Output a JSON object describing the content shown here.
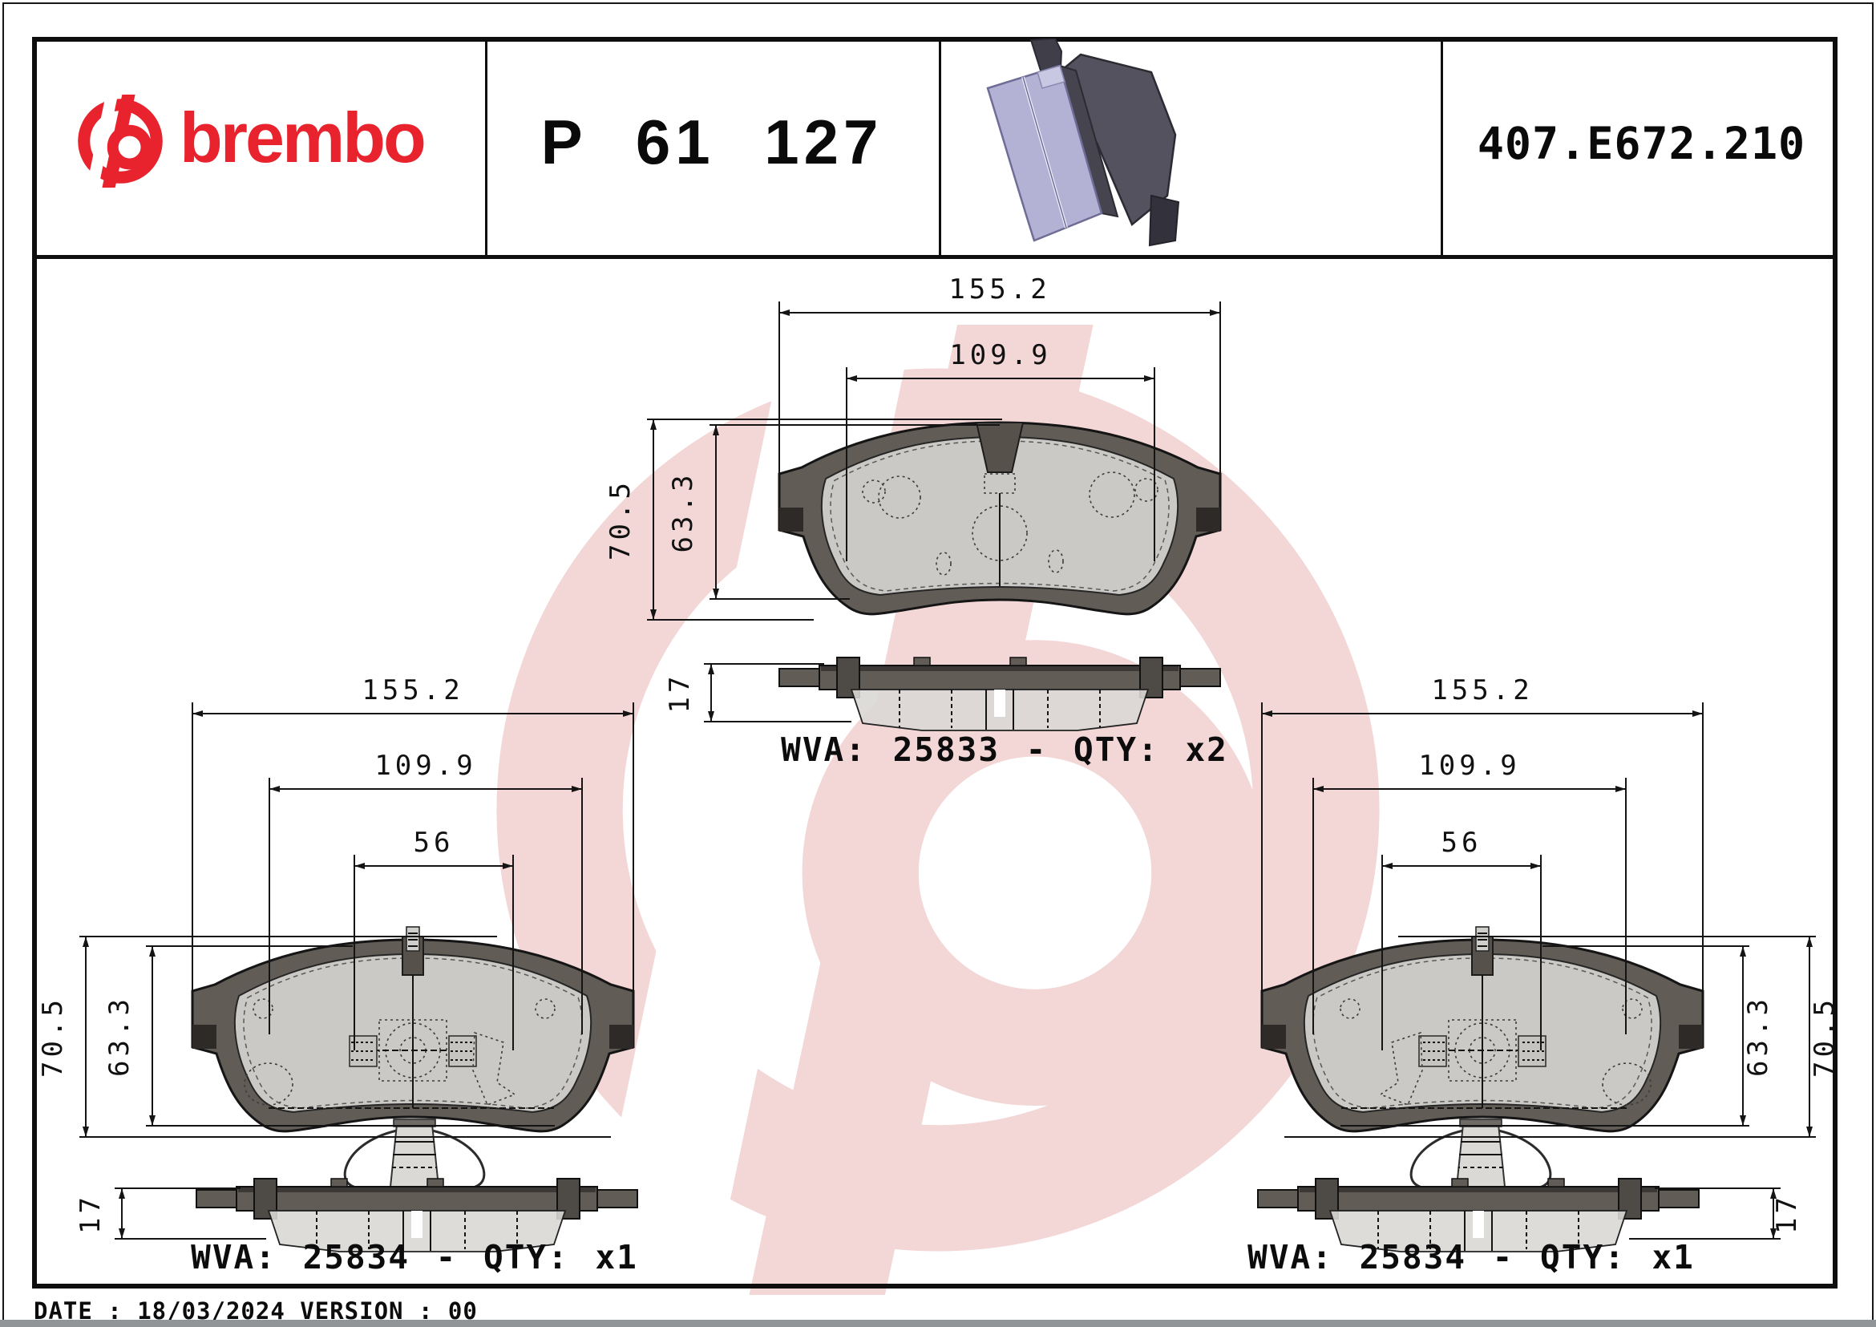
{
  "header": {
    "brand_wordmark": "brembo",
    "brand_color": "#e8232e",
    "part_number": "P 61 127",
    "catalog_code": "407.E672.210",
    "photo_name": "brake-pad-set-photo"
  },
  "units": [
    {
      "name": "pad-front-and-side-view-top",
      "wva_label": "WVA: 25833 - QTY: x2",
      "dims": {
        "overall_width": "155.2",
        "friction_width": "109.9",
        "overall_height": "70.5",
        "friction_height": "63.3",
        "thickness": "17"
      }
    },
    {
      "name": "pad-with-sensor-spring-left",
      "wva_label": "WVA: 25834 - QTY: x1",
      "dims": {
        "overall_width": "155.2",
        "friction_width": "109.9",
        "center_distance": "56",
        "overall_height": "70.5",
        "friction_height": "63.3",
        "thickness": "17"
      }
    },
    {
      "name": "pad-with-sensor-spring-right",
      "wva_label": "WVA: 25834 - QTY: x1",
      "dims": {
        "overall_width": "155.2",
        "friction_width": "109.9",
        "center_distance": "56",
        "overall_height": "70.5",
        "friction_height": "63.3",
        "thickness": "17"
      }
    }
  ],
  "footer": {
    "date_version_line": "DATE : 18/03/2024 VERSION : 00"
  },
  "colors": {
    "watermark_pink": "#f3d6d6",
    "backplate_gray": "#625c57",
    "friction_gray": "#d8d6d3",
    "pad_lavender": "#b4b2d4"
  }
}
